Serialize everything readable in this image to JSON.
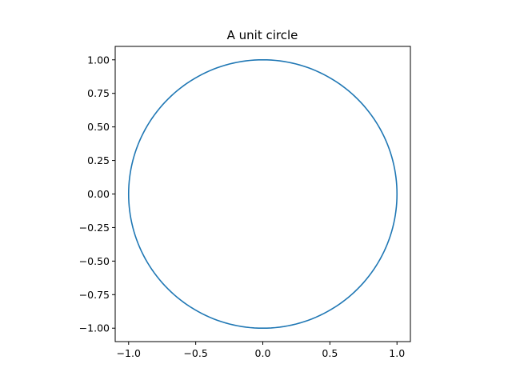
{
  "chart_data": {
    "type": "line",
    "title": "A unit circle",
    "xlabel": "",
    "ylabel": "",
    "xlim": [
      -1.1,
      1.1
    ],
    "ylim": [
      -1.1,
      1.1
    ],
    "aspect": "equal",
    "grid": false,
    "legend": "none",
    "x_ticks": [
      -1.0,
      -0.5,
      0.0,
      0.5,
      1.0
    ],
    "x_tick_labels": [
      "−1.0",
      "−0.5",
      "0.0",
      "0.5",
      "1.0"
    ],
    "y_ticks": [
      -1.0,
      -0.75,
      -0.5,
      -0.25,
      0.0,
      0.25,
      0.5,
      0.75,
      1.0
    ],
    "y_tick_labels": [
      "−1.00",
      "−0.75",
      "−0.50",
      "−0.25",
      "0.00",
      "0.25",
      "0.50",
      "0.75",
      "1.00"
    ],
    "series": [
      {
        "color": "#1f77b4",
        "x": [
          0.0,
          0.259,
          0.5,
          0.707,
          0.866,
          0.966,
          1.0,
          0.966,
          0.866,
          0.707,
          0.5,
          0.259,
          0.0,
          -0.259,
          -0.5,
          -0.707,
          -0.866,
          -0.966,
          -1.0,
          -0.966,
          -0.866,
          -0.707,
          -0.5,
          -0.259,
          0.0
        ],
        "y": [
          1.0,
          0.966,
          0.866,
          0.707,
          0.5,
          0.259,
          0.0,
          -0.259,
          -0.5,
          -0.707,
          -0.866,
          -0.966,
          -1.0,
          -0.966,
          -0.866,
          -0.707,
          -0.5,
          -0.259,
          0.0,
          0.259,
          0.5,
          0.707,
          0.866,
          0.966,
          1.0
        ]
      }
    ]
  }
}
